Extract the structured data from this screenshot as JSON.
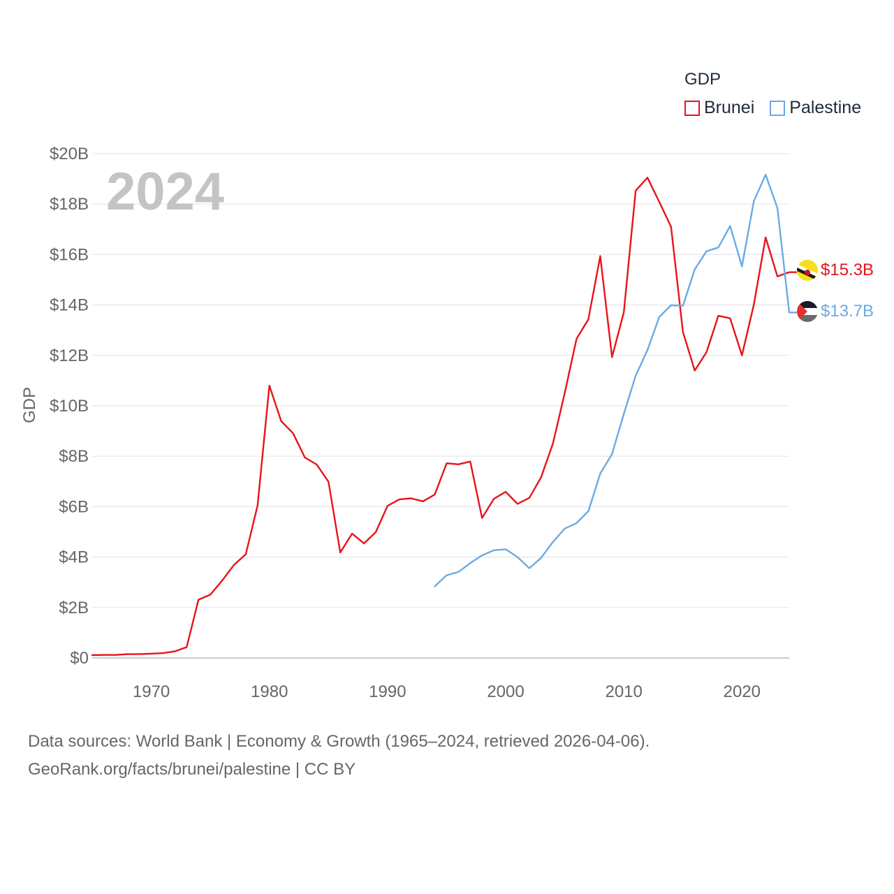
{
  "legend": {
    "title": "GDP",
    "items": [
      {
        "label": "Brunei",
        "color": "#e8131b"
      },
      {
        "label": "Palestine",
        "color": "#6aaae6"
      }
    ]
  },
  "footer": {
    "line1": "Data sources: World Bank | Economy & Growth (1965–2024, retrieved 2026-04-06).",
    "line2": "GeoRank.org/facts/brunei/palestine | CC BY"
  },
  "chart_data": {
    "type": "line",
    "title": "GDP",
    "year_label": "2024",
    "ylabel": "GDP",
    "xlabel": "",
    "xlim": [
      1965,
      2024
    ],
    "ylim": [
      0,
      20
    ],
    "y_unit": "billion USD",
    "xticks": [
      1970,
      1980,
      1990,
      2000,
      2010,
      2020
    ],
    "yticks": [
      0,
      2,
      4,
      6,
      8,
      10,
      12,
      14,
      16,
      18,
      20
    ],
    "ytick_labels": [
      "$0",
      "$2B",
      "$4B",
      "$6B",
      "$8B",
      "$10B",
      "$12B",
      "$14B",
      "$16B",
      "$18B",
      "$20B"
    ],
    "grid": true,
    "series": [
      {
        "name": "Brunei",
        "color": "#e8131b",
        "end_label": "$15.3B",
        "icon": "brunei-flag-icon",
        "x": [
          1965,
          1966,
          1967,
          1968,
          1969,
          1970,
          1971,
          1972,
          1973,
          1974,
          1975,
          1976,
          1977,
          1978,
          1979,
          1980,
          1981,
          1982,
          1983,
          1984,
          1985,
          1986,
          1987,
          1988,
          1989,
          1990,
          1991,
          1992,
          1993,
          1994,
          1995,
          1996,
          1997,
          1998,
          1999,
          2000,
          2001,
          2002,
          2003,
          2004,
          2005,
          2006,
          2007,
          2008,
          2009,
          2010,
          2011,
          2012,
          2013,
          2014,
          2015,
          2016,
          2017,
          2018,
          2019,
          2020,
          2021,
          2022,
          2023,
          2024
        ],
        "values": [
          0.11,
          0.12,
          0.12,
          0.15,
          0.15,
          0.17,
          0.19,
          0.26,
          0.43,
          2.31,
          2.51,
          3.07,
          3.69,
          4.11,
          6.05,
          10.8,
          9.39,
          8.91,
          7.95,
          7.67,
          6.99,
          4.18,
          4.93,
          4.54,
          4.99,
          6.03,
          6.29,
          6.33,
          6.21,
          6.48,
          7.72,
          7.68,
          7.79,
          5.55,
          6.31,
          6.59,
          6.11,
          6.35,
          7.17,
          8.51,
          10.51,
          12.66,
          13.43,
          15.94,
          11.93,
          13.71,
          18.53,
          19.05,
          18.09,
          17.1,
          12.93,
          11.4,
          12.13,
          13.57,
          13.47,
          12.0,
          14.01,
          16.68,
          15.13,
          15.3
        ]
      },
      {
        "name": "Palestine",
        "color": "#6aaae6",
        "end_label": "$13.7B",
        "icon": "palestine-flag-icon",
        "x": [
          1994,
          1995,
          1996,
          1997,
          1998,
          1999,
          2000,
          2001,
          2002,
          2003,
          2004,
          2005,
          2006,
          2007,
          2008,
          2009,
          2010,
          2011,
          2012,
          2013,
          2014,
          2015,
          2016,
          2017,
          2018,
          2019,
          2020,
          2021,
          2022,
          2023,
          2024
        ],
        "values": [
          2.84,
          3.28,
          3.41,
          3.76,
          4.07,
          4.27,
          4.31,
          4.0,
          3.56,
          3.97,
          4.6,
          5.13,
          5.35,
          5.82,
          7.31,
          8.09,
          9.68,
          11.19,
          12.21,
          13.52,
          13.99,
          13.97,
          15.41,
          16.13,
          16.28,
          17.13,
          15.53,
          18.11,
          19.17,
          17.84,
          13.7
        ]
      }
    ]
  }
}
